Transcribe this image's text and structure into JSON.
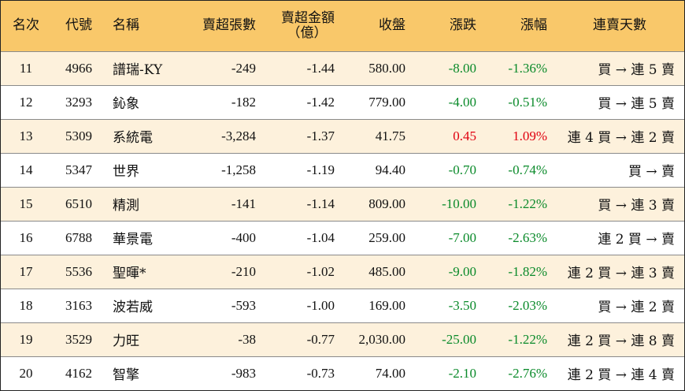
{
  "headers": {
    "rank": "名次",
    "code": "代號",
    "name": "名稱",
    "sell_shares": "賣超張數",
    "sell_amount_line1": "賣超金額",
    "sell_amount_line2": "（億）",
    "close": "收盤",
    "change": "漲跌",
    "change_pct": "漲幅",
    "streak": "連賣天數"
  },
  "rows": [
    {
      "rank": "11",
      "code": "4966",
      "name": "譜瑞-KY",
      "sell_shares": "-249",
      "sell_amount": "-1.44",
      "close": "580.00",
      "change": "-8.00",
      "change_pct": "-1.36%",
      "streak": "買 → 連 5 賣",
      "dir": "neg"
    },
    {
      "rank": "12",
      "code": "3293",
      "name": "鈊象",
      "sell_shares": "-182",
      "sell_amount": "-1.42",
      "close": "779.00",
      "change": "-4.00",
      "change_pct": "-0.51%",
      "streak": "買 → 連 5 賣",
      "dir": "neg"
    },
    {
      "rank": "13",
      "code": "5309",
      "name": "系統電",
      "sell_shares": "-3,284",
      "sell_amount": "-1.37",
      "close": "41.75",
      "change": "0.45",
      "change_pct": "1.09%",
      "streak": "連 4 買 → 連 2 賣",
      "dir": "pos"
    },
    {
      "rank": "14",
      "code": "5347",
      "name": "世界",
      "sell_shares": "-1,258",
      "sell_amount": "-1.19",
      "close": "94.40",
      "change": "-0.70",
      "change_pct": "-0.74%",
      "streak": "買 → 賣",
      "dir": "neg"
    },
    {
      "rank": "15",
      "code": "6510",
      "name": "精測",
      "sell_shares": "-141",
      "sell_amount": "-1.14",
      "close": "809.00",
      "change": "-10.00",
      "change_pct": "-1.22%",
      "streak": "買 → 連 3 賣",
      "dir": "neg"
    },
    {
      "rank": "16",
      "code": "6788",
      "name": "華景電",
      "sell_shares": "-400",
      "sell_amount": "-1.04",
      "close": "259.00",
      "change": "-7.00",
      "change_pct": "-2.63%",
      "streak": "連 2 買 → 賣",
      "dir": "neg"
    },
    {
      "rank": "17",
      "code": "5536",
      "name": "聖暉*",
      "sell_shares": "-210",
      "sell_amount": "-1.02",
      "close": "485.00",
      "change": "-9.00",
      "change_pct": "-1.82%",
      "streak": "連 2 買 → 連 3 賣",
      "dir": "neg"
    },
    {
      "rank": "18",
      "code": "3163",
      "name": "波若威",
      "sell_shares": "-593",
      "sell_amount": "-1.00",
      "close": "169.00",
      "change": "-3.50",
      "change_pct": "-2.03%",
      "streak": "買 → 連 2 賣",
      "dir": "neg"
    },
    {
      "rank": "19",
      "code": "3529",
      "name": "力旺",
      "sell_shares": "-38",
      "sell_amount": "-0.77",
      "close": "2,030.00",
      "change": "-25.00",
      "change_pct": "-1.22%",
      "streak": "連 2 買 → 連 8 賣",
      "dir": "neg"
    },
    {
      "rank": "20",
      "code": "4162",
      "name": "智擎",
      "sell_shares": "-983",
      "sell_amount": "-0.73",
      "close": "74.00",
      "change": "-2.10",
      "change_pct": "-2.76%",
      "streak": "連 2 買 → 連 4 賣",
      "dir": "neg"
    }
  ],
  "colors": {
    "header_bg": "#f9c86a",
    "odd_row_bg": "#fdf1dc",
    "even_row_bg": "#ffffff",
    "positive": "#e0000f",
    "negative": "#0a8a2a"
  }
}
